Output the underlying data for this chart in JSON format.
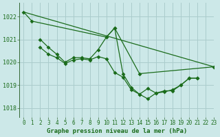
{
  "bg_color": "#cce8e8",
  "grid_color": "#aacccc",
  "line_color": "#1a6b1a",
  "title": "Graphe pression niveau de la mer (hPa)",
  "xlim": [
    -0.5,
    23
  ],
  "ylim": [
    1017.6,
    1022.6
  ],
  "yticks": [
    1018,
    1019,
    1020,
    1021,
    1022
  ],
  "xticks": [
    0,
    1,
    2,
    3,
    4,
    5,
    6,
    7,
    8,
    9,
    10,
    11,
    12,
    13,
    14,
    15,
    16,
    17,
    18,
    19,
    20,
    21,
    22,
    23
  ],
  "series": [
    {
      "x": [
        0,
        1,
        10,
        11,
        14,
        23
      ],
      "y": [
        1022.2,
        1021.8,
        1021.1,
        1021.5,
        1019.5,
        1019.8
      ]
    },
    {
      "x": [
        2,
        3,
        4,
        5,
        6,
        7,
        8,
        9,
        10,
        11,
        12,
        13,
        14,
        15,
        16,
        17,
        18,
        19,
        20,
        21
      ],
      "y": [
        1021.0,
        1020.65,
        1020.35,
        1020.0,
        1020.2,
        1020.2,
        1020.15,
        1020.55,
        1021.1,
        1021.5,
        1019.5,
        1018.9,
        1018.6,
        1018.85,
        1018.65,
        1018.75,
        1018.75,
        1019.0,
        1019.3,
        1019.3
      ]
    },
    {
      "x": [
        2,
        3,
        4,
        5,
        6,
        7,
        8,
        9,
        10,
        11,
        12,
        13,
        14,
        15,
        16,
        17,
        18,
        19,
        20,
        21
      ],
      "y": [
        1020.65,
        1020.35,
        1020.2,
        1019.95,
        1020.1,
        1020.15,
        1020.1,
        1020.25,
        1020.15,
        1019.55,
        1019.35,
        1018.8,
        1018.6,
        1018.4,
        1018.65,
        1018.7,
        1018.8,
        1019.0,
        1019.3,
        1019.3
      ]
    },
    {
      "x": [
        0,
        23
      ],
      "y": [
        1022.2,
        1019.8
      ]
    }
  ]
}
